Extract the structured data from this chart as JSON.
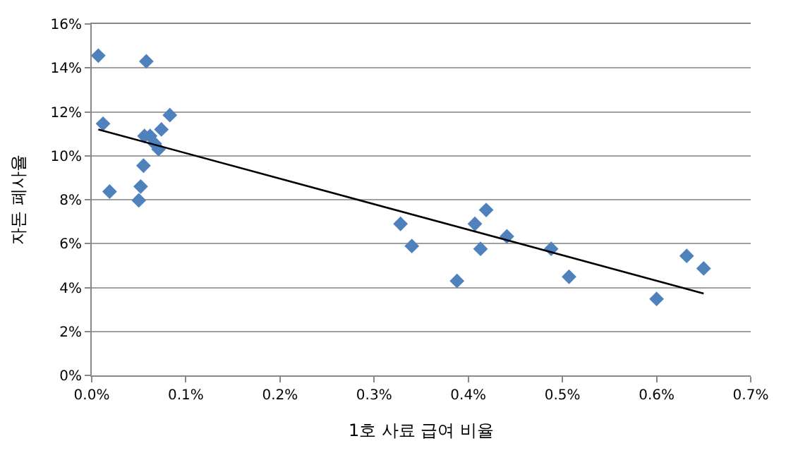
{
  "chart_data": {
    "type": "scatter",
    "xlabel": "1호 사료 급여 비율",
    "ylabel": "자돈 폐사율",
    "xlim": [
      0,
      0.7
    ],
    "xticks": [
      {
        "value": 0,
        "label": "0.0%"
      },
      {
        "value": 0.1,
        "label": "0.1%"
      },
      {
        "value": 0.2,
        "label": "0.2%"
      },
      {
        "value": 0.3,
        "label": "0.3%"
      },
      {
        "value": 0.4,
        "label": "0.4%"
      },
      {
        "value": 0.5,
        "label": "0.5%"
      },
      {
        "value": 0.6,
        "label": "0.6%"
      },
      {
        "value": 0.7,
        "label": "0.7%"
      }
    ],
    "ylim": [
      0,
      16
    ],
    "yticks": [
      {
        "value": 0,
        "label": "0%"
      },
      {
        "value": 2,
        "label": "2%"
      },
      {
        "value": 4,
        "label": "4%"
      },
      {
        "value": 6,
        "label": "6%"
      },
      {
        "value": 8,
        "label": "8%"
      },
      {
        "value": 10,
        "label": "10%"
      },
      {
        "value": 12,
        "label": "12%"
      },
      {
        "value": 14,
        "label": "14%"
      },
      {
        "value": 16,
        "label": "16%"
      }
    ],
    "grid": "y",
    "marker": "diamond",
    "series": [
      {
        "color": "#4f81bd",
        "x": [
          0.007,
          0.058,
          0.012,
          0.083,
          0.074,
          0.056,
          0.062,
          0.067,
          0.071,
          0.055,
          0.019,
          0.052,
          0.05,
          0.328,
          0.34,
          0.388,
          0.407,
          0.413,
          0.419,
          0.441,
          0.488,
          0.507,
          0.6,
          0.632,
          0.65
        ],
        "values": [
          14.56,
          14.3,
          11.46,
          11.85,
          11.2,
          10.9,
          10.9,
          10.55,
          10.3,
          9.55,
          8.37,
          8.6,
          7.97,
          6.9,
          5.89,
          4.3,
          6.9,
          5.76,
          7.53,
          6.33,
          5.76,
          4.49,
          3.48,
          5.44,
          4.87
        ]
      },
      {
        "type": "line",
        "marker": "none",
        "color": "#000000",
        "x": [
          0.007,
          0.65
        ],
        "values": [
          11.2,
          3.73
        ]
      }
    ]
  }
}
